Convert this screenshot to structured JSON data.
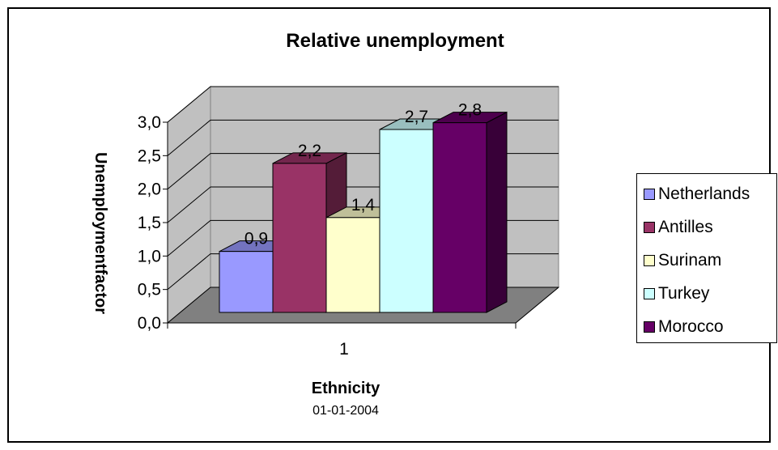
{
  "chart_data": {
    "type": "bar",
    "title": "Relative unemployment",
    "xlabel": "Ethnicity",
    "xsublabel": "01-01-2004",
    "ylabel": "Unemploymentfactor",
    "categories": [
      "1"
    ],
    "ylim": [
      0,
      3.0
    ],
    "yticks": [
      "0,0",
      "0,5",
      "1,0",
      "1,5",
      "2,0",
      "2,5",
      "3,0"
    ],
    "grid": true,
    "legend_position": "right",
    "series": [
      {
        "name": "Netherlands",
        "values": [
          0.9
        ],
        "label": "0,9",
        "color": "#9999ff"
      },
      {
        "name": "Antilles",
        "values": [
          2.2
        ],
        "label": "2,2",
        "color": "#993366"
      },
      {
        "name": "Surinam",
        "values": [
          1.4
        ],
        "label": "1,4",
        "color": "#ffffcc"
      },
      {
        "name": "Turkey",
        "values": [
          2.7
        ],
        "label": "2,7",
        "color": "#ccffff"
      },
      {
        "name": "Morocco",
        "values": [
          2.8
        ],
        "label": "2,8",
        "color": "#660066"
      }
    ]
  }
}
